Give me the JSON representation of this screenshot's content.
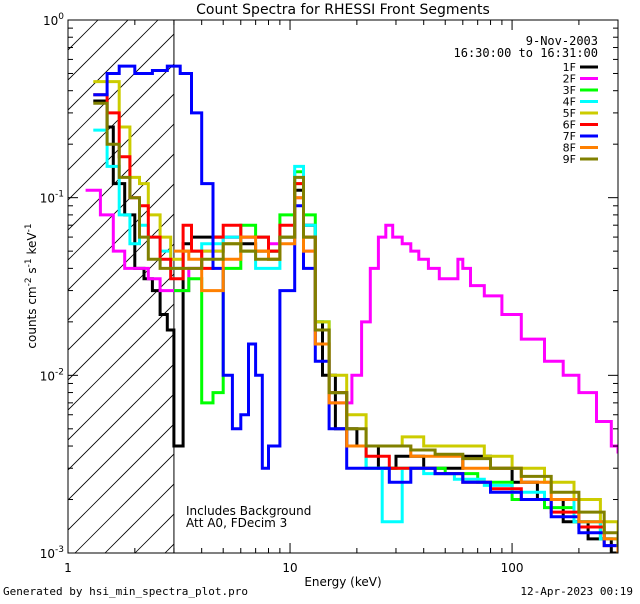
{
  "chart_data": {
    "type": "line",
    "title": "Count Spectra for RHESSI Front Segments",
    "xlabel": "Energy (keV)",
    "ylabel_parts": {
      "base": "counts cm",
      "exp1": "-2",
      "mid1": " s",
      "exp2": "-1",
      "mid2": " keV",
      "exp3": "-1"
    },
    "x_scale": "log",
    "y_scale": "log",
    "xlim": [
      1,
      300
    ],
    "ylim": [
      0.001,
      1
    ],
    "x_ticks": [
      {
        "value": 1,
        "label": "1"
      },
      {
        "value": 10,
        "label": "10"
      },
      {
        "value": 100,
        "label": "100"
      }
    ],
    "y_ticks": [
      {
        "value": 0.001,
        "base": "10",
        "exp": "-3"
      },
      {
        "value": 0.01,
        "base": "10",
        "exp": "-2"
      },
      {
        "value": 0.1,
        "base": "10",
        "exp": "-1"
      },
      {
        "value": 1,
        "base": "10",
        "exp": "0"
      }
    ],
    "date": "9-Nov-2003",
    "time_range": "16:30:00 to 16:31:00",
    "annotation_lines": [
      "Includes Background",
      "Att A0, FDecim 3"
    ],
    "shaded_region_kev": [
      1,
      3
    ],
    "legend_position": "top-right",
    "series": [
      {
        "name": "1F",
        "color": "#000000",
        "points": [
          [
            1.3,
            0.35
          ],
          [
            1.5,
            0.25
          ],
          [
            1.6,
            0.12
          ],
          [
            1.8,
            0.08
          ],
          [
            2.0,
            0.04
          ],
          [
            2.2,
            0.035
          ],
          [
            2.4,
            0.03
          ],
          [
            2.6,
            0.022
          ],
          [
            2.8,
            0.018
          ],
          [
            3.0,
            0.004
          ],
          [
            3.3,
            0.055
          ],
          [
            3.6,
            0.06
          ],
          [
            4.0,
            0.06
          ],
          [
            5.0,
            0.06
          ],
          [
            6.0,
            0.055
          ],
          [
            7.0,
            0.05
          ],
          [
            8.0,
            0.05
          ],
          [
            9.0,
            0.06
          ],
          [
            10.5,
            0.11
          ],
          [
            11.5,
            0.07
          ],
          [
            13.0,
            0.02
          ],
          [
            14.0,
            0.01
          ],
          [
            16.0,
            0.005
          ],
          [
            20.0,
            0.004
          ],
          [
            25.0,
            0.003
          ],
          [
            30.0,
            0.0035
          ],
          [
            40.0,
            0.003
          ],
          [
            50.0,
            0.003
          ],
          [
            60.0,
            0.0035
          ],
          [
            80.0,
            0.003
          ],
          [
            100.0,
            0.0025
          ],
          [
            130.0,
            0.002
          ],
          [
            170.0,
            0.0015
          ],
          [
            220.0,
            0.0012
          ],
          [
            280.0,
            0.001
          ]
        ]
      },
      {
        "name": "2F",
        "color": "#ff00ff",
        "points": [
          [
            1.2,
            0.11
          ],
          [
            1.4,
            0.08
          ],
          [
            1.6,
            0.05
          ],
          [
            1.8,
            0.04
          ],
          [
            2.0,
            0.04
          ],
          [
            2.3,
            0.035
          ],
          [
            2.6,
            0.03
          ],
          [
            3.0,
            0.03
          ],
          [
            3.5,
            0.04
          ],
          [
            4.0,
            0.05
          ],
          [
            5.0,
            0.06
          ],
          [
            6.0,
            0.06
          ],
          [
            7.0,
            0.06
          ],
          [
            8.0,
            0.055
          ],
          [
            9.0,
            0.06
          ],
          [
            10.5,
            0.1
          ],
          [
            11.5,
            0.05
          ],
          [
            13.0,
            0.015
          ],
          [
            15.0,
            0.007
          ],
          [
            17.0,
            0.007
          ],
          [
            19.0,
            0.01
          ],
          [
            21.0,
            0.02
          ],
          [
            23.0,
            0.04
          ],
          [
            25.0,
            0.06
          ],
          [
            27.0,
            0.07
          ],
          [
            29.0,
            0.06
          ],
          [
            32.0,
            0.055
          ],
          [
            35.0,
            0.05
          ],
          [
            38.0,
            0.045
          ],
          [
            42.0,
            0.04
          ],
          [
            47.0,
            0.035
          ],
          [
            52.0,
            0.035
          ],
          [
            57.0,
            0.045
          ],
          [
            60.0,
            0.04
          ],
          [
            65.0,
            0.032
          ],
          [
            75.0,
            0.028
          ],
          [
            90.0,
            0.022
          ],
          [
            110.0,
            0.016
          ],
          [
            140.0,
            0.012
          ],
          [
            170.0,
            0.01
          ],
          [
            200.0,
            0.008
          ],
          [
            240.0,
            0.0055
          ],
          [
            280.0,
            0.004
          ],
          [
            300.0,
            0.0037
          ]
        ]
      },
      {
        "name": "3F",
        "color": "#00ff00",
        "points": [
          [
            3.0,
            0.03
          ],
          [
            3.5,
            0.035
          ],
          [
            4.0,
            0.007
          ],
          [
            4.5,
            0.008
          ],
          [
            5.0,
            0.04
          ],
          [
            6.0,
            0.07
          ],
          [
            7.0,
            0.06
          ],
          [
            8.0,
            0.05
          ],
          [
            9.0,
            0.08
          ],
          [
            10.5,
            0.14
          ],
          [
            11.5,
            0.08
          ],
          [
            13.0,
            0.02
          ],
          [
            15.0,
            0.008
          ],
          [
            18.0,
            0.004
          ],
          [
            22.0,
            0.003
          ],
          [
            30.0,
            0.003
          ],
          [
            40.0,
            0.003
          ],
          [
            50.0,
            0.0028
          ],
          [
            70.0,
            0.0025
          ],
          [
            100.0,
            0.002
          ],
          [
            140.0,
            0.0018
          ],
          [
            190.0,
            0.0015
          ],
          [
            250.0,
            0.0012
          ],
          [
            300.0,
            0.001
          ]
        ]
      },
      {
        "name": "4F",
        "color": "#00ffff",
        "points": [
          [
            1.3,
            0.24
          ],
          [
            1.5,
            0.15
          ],
          [
            1.7,
            0.08
          ],
          [
            1.9,
            0.055
          ],
          [
            2.1,
            0.07
          ],
          [
            2.3,
            0.06
          ],
          [
            2.6,
            0.05
          ],
          [
            2.9,
            0.04
          ],
          [
            3.3,
            0.05
          ],
          [
            4.0,
            0.055
          ],
          [
            5.0,
            0.06
          ],
          [
            6.0,
            0.05
          ],
          [
            7.0,
            0.04
          ],
          [
            8.0,
            0.04
          ],
          [
            9.0,
            0.06
          ],
          [
            10.5,
            0.15
          ],
          [
            11.5,
            0.07
          ],
          [
            13.0,
            0.02
          ],
          [
            15.0,
            0.008
          ],
          [
            18.0,
            0.004
          ],
          [
            22.0,
            0.003
          ],
          [
            26.0,
            0.0015
          ],
          [
            32.0,
            0.003
          ],
          [
            40.0,
            0.0028
          ],
          [
            55.0,
            0.0026
          ],
          [
            75.0,
            0.0024
          ],
          [
            100.0,
            0.0022
          ],
          [
            140.0,
            0.002
          ],
          [
            190.0,
            0.0015
          ],
          [
            250.0,
            0.0012
          ],
          [
            300.0,
            0.001
          ]
        ]
      },
      {
        "name": "5F",
        "color": "#cccc00",
        "points": [
          [
            1.3,
            0.45
          ],
          [
            1.5,
            0.45
          ],
          [
            1.7,
            0.25
          ],
          [
            1.9,
            0.13
          ],
          [
            2.1,
            0.12
          ],
          [
            2.3,
            0.08
          ],
          [
            2.6,
            0.06
          ],
          [
            2.9,
            0.045
          ],
          [
            3.3,
            0.05
          ],
          [
            4.0,
            0.05
          ],
          [
            5.0,
            0.055
          ],
          [
            6.0,
            0.05
          ],
          [
            7.0,
            0.05
          ],
          [
            8.0,
            0.045
          ],
          [
            9.0,
            0.06
          ],
          [
            10.5,
            0.12
          ],
          [
            11.5,
            0.06
          ],
          [
            13.0,
            0.02
          ],
          [
            15.0,
            0.01
          ],
          [
            18.0,
            0.006
          ],
          [
            22.0,
            0.004
          ],
          [
            26.0,
            0.004
          ],
          [
            32.0,
            0.0045
          ],
          [
            40.0,
            0.004
          ],
          [
            55.0,
            0.004
          ],
          [
            75.0,
            0.0035
          ],
          [
            100.0,
            0.003
          ],
          [
            140.0,
            0.0025
          ],
          [
            190.0,
            0.002
          ],
          [
            250.0,
            0.0015
          ],
          [
            300.0,
            0.0012
          ]
        ]
      },
      {
        "name": "6F",
        "color": "#ff0000",
        "points": [
          [
            1.3,
            0.38
          ],
          [
            1.5,
            0.3
          ],
          [
            1.7,
            0.17
          ],
          [
            1.9,
            0.1
          ],
          [
            2.1,
            0.09
          ],
          [
            2.3,
            0.06
          ],
          [
            2.6,
            0.045
          ],
          [
            2.9,
            0.035
          ],
          [
            3.3,
            0.07
          ],
          [
            3.6,
            0.05
          ],
          [
            4.0,
            0.04
          ],
          [
            4.5,
            0.06
          ],
          [
            5.0,
            0.07
          ],
          [
            6.0,
            0.06
          ],
          [
            7.0,
            0.06
          ],
          [
            8.0,
            0.05
          ],
          [
            9.0,
            0.07
          ],
          [
            10.5,
            0.12
          ],
          [
            11.5,
            0.06
          ],
          [
            13.0,
            0.018
          ],
          [
            15.0,
            0.008
          ],
          [
            18.0,
            0.004
          ],
          [
            22.0,
            0.0035
          ],
          [
            28.0,
            0.003
          ],
          [
            35.0,
            0.003
          ],
          [
            45.0,
            0.0028
          ],
          [
            60.0,
            0.0025
          ],
          [
            80.0,
            0.0023
          ],
          [
            110.0,
            0.002
          ],
          [
            150.0,
            0.0017
          ],
          [
            200.0,
            0.0014
          ],
          [
            260.0,
            0.0011
          ],
          [
            300.0,
            0.001
          ]
        ]
      },
      {
        "name": "7F",
        "color": "#0000ff",
        "points": [
          [
            1.3,
            0.38
          ],
          [
            1.5,
            0.5
          ],
          [
            1.7,
            0.55
          ],
          [
            2.0,
            0.5
          ],
          [
            2.4,
            0.52
          ],
          [
            2.8,
            0.55
          ],
          [
            3.2,
            0.5
          ],
          [
            3.6,
            0.3
          ],
          [
            4.0,
            0.12
          ],
          [
            4.5,
            0.04
          ],
          [
            5.0,
            0.01
          ],
          [
            5.5,
            0.005
          ],
          [
            6.0,
            0.006
          ],
          [
            6.5,
            0.015
          ],
          [
            7.0,
            0.01
          ],
          [
            7.5,
            0.003
          ],
          [
            8.0,
            0.004
          ],
          [
            9.0,
            0.03
          ],
          [
            10.5,
            0.09
          ],
          [
            11.5,
            0.04
          ],
          [
            13.0,
            0.012
          ],
          [
            15.0,
            0.005
          ],
          [
            18.0,
            0.003
          ],
          [
            22.0,
            0.003
          ],
          [
            28.0,
            0.0025
          ],
          [
            35.0,
            0.003
          ],
          [
            45.0,
            0.0028
          ],
          [
            60.0,
            0.0025
          ],
          [
            80.0,
            0.0022
          ],
          [
            110.0,
            0.002
          ],
          [
            150.0,
            0.0016
          ],
          [
            200.0,
            0.0013
          ],
          [
            260.0,
            0.0011
          ],
          [
            300.0,
            0.001
          ]
        ]
      },
      {
        "name": "8F",
        "color": "#ff8000",
        "points": [
          [
            3.0,
            0.05
          ],
          [
            3.5,
            0.045
          ],
          [
            4.0,
            0.03
          ],
          [
            5.0,
            0.045
          ],
          [
            6.0,
            0.06
          ],
          [
            7.0,
            0.05
          ],
          [
            8.0,
            0.045
          ],
          [
            9.0,
            0.055
          ],
          [
            10.5,
            0.1
          ],
          [
            11.5,
            0.05
          ],
          [
            13.0,
            0.015
          ],
          [
            15.0,
            0.007
          ],
          [
            18.0,
            0.004
          ],
          [
            22.0,
            0.004
          ],
          [
            28.0,
            0.004
          ],
          [
            35.0,
            0.0035
          ],
          [
            45.0,
            0.0035
          ],
          [
            60.0,
            0.003
          ],
          [
            80.0,
            0.003
          ],
          [
            110.0,
            0.0025
          ],
          [
            150.0,
            0.002
          ],
          [
            200.0,
            0.0015
          ],
          [
            260.0,
            0.0012
          ],
          [
            300.0,
            0.001
          ]
        ]
      },
      {
        "name": "9F",
        "color": "#808000",
        "points": [
          [
            1.3,
            0.34
          ],
          [
            1.5,
            0.2
          ],
          [
            1.7,
            0.13
          ],
          [
            1.9,
            0.1
          ],
          [
            2.1,
            0.06
          ],
          [
            2.3,
            0.045
          ],
          [
            2.6,
            0.04
          ],
          [
            2.9,
            0.04
          ],
          [
            3.3,
            0.04
          ],
          [
            4.0,
            0.045
          ],
          [
            5.0,
            0.055
          ],
          [
            6.0,
            0.05
          ],
          [
            7.0,
            0.045
          ],
          [
            8.0,
            0.045
          ],
          [
            9.0,
            0.06
          ],
          [
            10.5,
            0.13
          ],
          [
            11.5,
            0.06
          ],
          [
            13.0,
            0.018
          ],
          [
            15.0,
            0.008
          ],
          [
            18.0,
            0.005
          ],
          [
            22.0,
            0.004
          ],
          [
            28.0,
            0.004
          ],
          [
            35.0,
            0.0038
          ],
          [
            45.0,
            0.0036
          ],
          [
            60.0,
            0.0034
          ],
          [
            80.0,
            0.003
          ],
          [
            110.0,
            0.0027
          ],
          [
            150.0,
            0.0022
          ],
          [
            200.0,
            0.0017
          ],
          [
            260.0,
            0.0013
          ],
          [
            300.0,
            0.0011
          ]
        ]
      }
    ]
  },
  "footer": {
    "generated_by": "Generated by hsi_min_spectra_plot.pro",
    "timestamp": "12-Apr-2023 00:19"
  }
}
